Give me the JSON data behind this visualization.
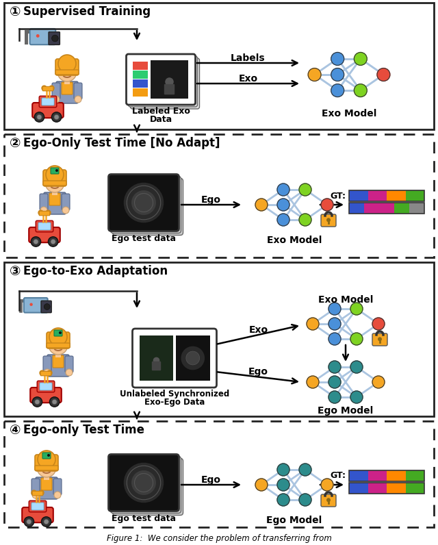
{
  "figure_caption": "Figure 1:  We consider the problem of transferring from",
  "background_color": "#ffffff",
  "sections": [
    {
      "number": "①",
      "title": "Supervised Training",
      "border": "solid"
    },
    {
      "number": "②",
      "title": "Ego-Only Test Time [No Adapt]",
      "border": "dashed"
    },
    {
      "number": "③",
      "title": "Ego-to-Exo Adaptation",
      "border": "solid"
    },
    {
      "number": "④",
      "title": "Ego-only Test Time",
      "border": "dashed"
    }
  ],
  "nn_exo_colors": {
    "left": "#f5a623",
    "mid_top": "#4a90d9",
    "mid_bot": "#4a90d9",
    "mid_center": "#4a90d9",
    "right_top": "#7ed321",
    "right_bot": "#7ed321",
    "output": "#e74c3c",
    "edge": "#aac4e0"
  },
  "nn_ego_colors": {
    "left": "#f5a623",
    "mid_top": "#2c8c8c",
    "mid_bot": "#2c8c8c",
    "mid_center": "#2c8c8c",
    "right_top": "#2c8c8c",
    "right_bot": "#2c8c8c",
    "output": "#f5a623",
    "edge": "#aac4e0"
  },
  "gt_colors": [
    "#3355cc",
    "#cc2288",
    "#ff8800",
    "#44aa22"
  ],
  "pred_colors_bad": [
    "#3355cc",
    "#cc2288",
    "#cc2288",
    "#44aa22",
    "#888888"
  ],
  "pred_colors_good": [
    "#3355cc",
    "#cc2288",
    "#ff8800",
    "#44aa22"
  ],
  "lock_color": "#f5a623",
  "arrow_label_fontsize": 10,
  "section_title_fontsize": 12,
  "model_label_fontsize": 10
}
